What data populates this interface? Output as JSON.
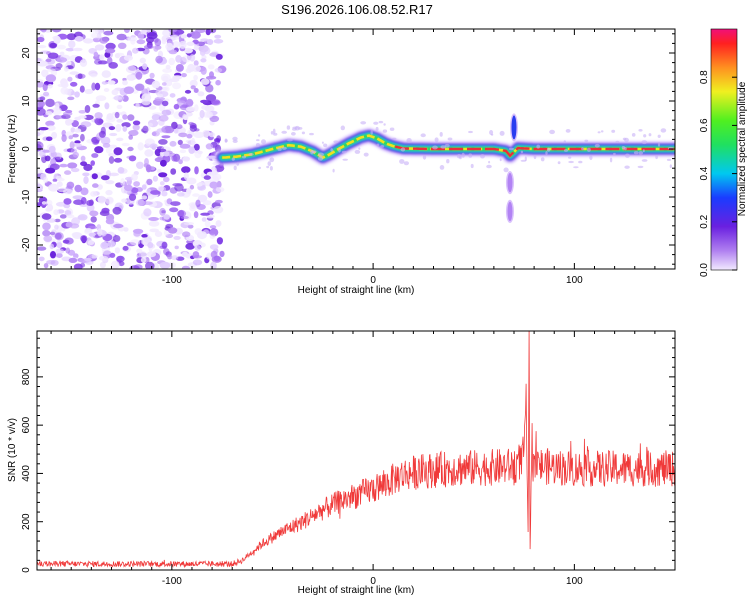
{
  "title": "S196.2026.106.08.52.R17",
  "colors": {
    "snr_line": "#f03a3a",
    "spectro_noise": "#7a3fd6",
    "track_peak": "#e8303a",
    "track_mid": "#37d83a",
    "track_edge": "#2a8cf0"
  },
  "chart_data": [
    {
      "type": "heatmap",
      "title": "S196.2026.106.08.52.R17",
      "xlabel": "Height of straight line (km)",
      "ylabel": "Frequency (Hz)",
      "xlim": [
        -167,
        150
      ],
      "ylim": [
        -25,
        25
      ],
      "x_ticks": [
        -100,
        0,
        100
      ],
      "x_tick_labels": [
        "-100",
        "0",
        "100"
      ],
      "y_ticks": [
        -20,
        -10,
        0,
        10,
        20
      ],
      "y_tick_labels": [
        "-20",
        "-10",
        "0",
        "10",
        "20"
      ],
      "noise_region_x": [
        -167,
        -75
      ],
      "track": {
        "x": [
          -75,
          -68,
          -60,
          -50,
          -42,
          -36,
          -30,
          -25,
          -22,
          -18,
          -12,
          -6,
          -2,
          2,
          6,
          10,
          15,
          30,
          60,
          66,
          68,
          70,
          72,
          80,
          100,
          120,
          150
        ],
        "y": [
          -1.8,
          -1.6,
          -1.1,
          0.0,
          0.8,
          0.5,
          -0.5,
          -1.8,
          -1.2,
          -0.2,
          1.2,
          2.4,
          2.8,
          2.2,
          1.2,
          0.6,
          0.1,
          0.0,
          0.0,
          -0.4,
          -1.4,
          -0.6,
          0.2,
          0.0,
          0.0,
          0.0,
          0.0
        ]
      },
      "artifacts": [
        {
          "x": 70,
          "y": [
            2,
            7
          ]
        },
        {
          "x": 68,
          "y": [
            -15,
            -11
          ]
        },
        {
          "x": 68,
          "y": [
            -9,
            -5
          ]
        }
      ],
      "colorbar": {
        "label": "Normalized spectral amplitude",
        "range": [
          0,
          1
        ],
        "ticks": [
          0.0,
          0.2,
          0.4,
          0.6,
          0.8
        ],
        "tick_labels": [
          "0.0",
          "0.2",
          "0.4",
          "0.6",
          "0.8"
        ]
      }
    },
    {
      "type": "line",
      "xlabel": "Height of straight line (km)",
      "ylabel": "SNR (10 * v/v)",
      "xlim": [
        -167,
        150
      ],
      "ylim": [
        0,
        990
      ],
      "x_ticks": [
        -100,
        0,
        100
      ],
      "x_tick_labels": [
        "-100",
        "0",
        "100"
      ],
      "y_ticks": [
        0,
        200,
        400,
        600,
        800
      ],
      "y_tick_labels": [
        "0",
        "200",
        "400",
        "600",
        "800"
      ],
      "series": [
        {
          "name": "SNR",
          "envelope_x": [
            -167,
            -70,
            -65,
            -55,
            -45,
            -35,
            -25,
            -15,
            -5,
            5,
            12,
            17,
            25,
            40,
            60,
            70,
            74,
            76,
            78,
            80,
            84,
            100,
            120,
            150
          ],
          "envelope_y": [
            25,
            25,
            40,
            110,
            160,
            200,
            250,
            290,
            320,
            350,
            385,
            400,
            410,
            420,
            425,
            430,
            460,
            500,
            470,
            440,
            430,
            420,
            420,
            420
          ],
          "spike_x": [
            75,
            76,
            77,
            77.5,
            78,
            79
          ],
          "spike_y": [
            480,
            720,
            100,
            990,
            60,
            560
          ]
        }
      ]
    }
  ]
}
